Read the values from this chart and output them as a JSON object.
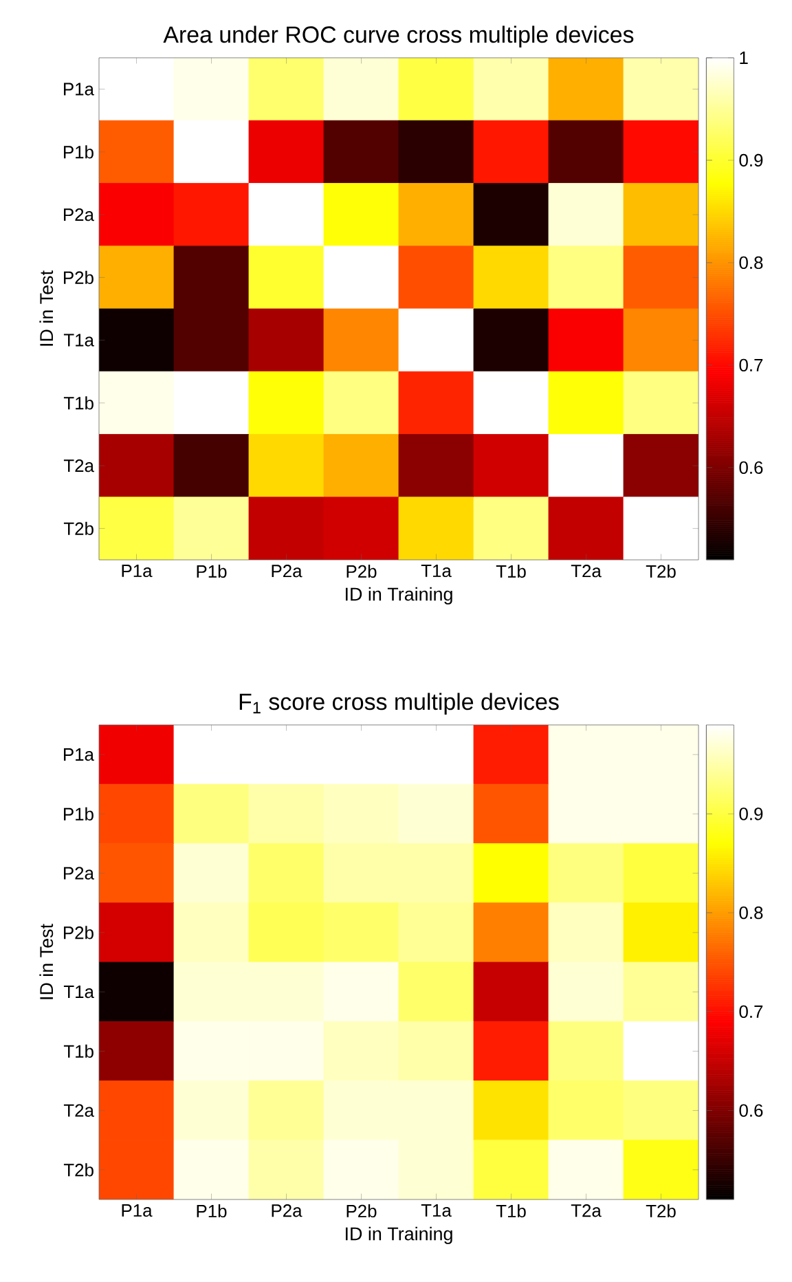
{
  "chart_data": [
    {
      "type": "heatmap",
      "title": "Area under ROC curve cross multiple devices",
      "xlabel": "ID in Training",
      "ylabel": "ID in Test",
      "categories": [
        "P1a",
        "P1b",
        "P2a",
        "P2b",
        "T1a",
        "T1b",
        "T2a",
        "T2b"
      ],
      "y_categories": [
        "P1a",
        "P1b",
        "P2a",
        "P2b",
        "T1a",
        "T1b",
        "T2a",
        "T2b"
      ],
      "cells": [
        [
          1.0,
          0.99,
          0.93,
          0.98,
          0.91,
          0.96,
          0.82,
          0.96
        ],
        [
          0.76,
          1.0,
          0.68,
          0.57,
          0.54,
          0.71,
          0.57,
          0.7
        ],
        [
          0.69,
          0.71,
          1.0,
          0.88,
          0.82,
          0.53,
          0.98,
          0.83
        ],
        [
          0.82,
          0.57,
          0.9,
          1.0,
          0.75,
          0.85,
          0.94,
          0.76
        ],
        [
          0.52,
          0.57,
          0.63,
          0.79,
          1.0,
          0.53,
          0.69,
          0.79
        ],
        [
          0.99,
          1.0,
          0.88,
          0.94,
          0.72,
          1.0,
          0.88,
          0.94
        ],
        [
          0.63,
          0.56,
          0.85,
          0.82,
          0.61,
          0.66,
          1.0,
          0.61
        ],
        [
          0.91,
          0.95,
          0.65,
          0.66,
          0.85,
          0.94,
          0.65,
          1.0
        ]
      ],
      "clim": [
        0.51,
        1
      ],
      "cticks": [
        0.6,
        0.7,
        0.8,
        0.9,
        1
      ]
    },
    {
      "type": "heatmap",
      "title": "F$_{1}$ score cross multiple devices",
      "xlabel": "ID in Training",
      "ylabel": "ID in Test",
      "categories": [
        "P1a",
        "P1b",
        "P2a",
        "P2b",
        "T1a",
        "T1b",
        "T2a",
        "T2b"
      ],
      "y_categories": [
        "P1a",
        "P1b",
        "P2a",
        "P2b",
        "T1a",
        "T1b",
        "T2a",
        "T2b"
      ],
      "cells": [
        [
          0.68,
          0.99,
          0.99,
          0.99,
          0.99,
          0.71,
          0.98,
          0.98
        ],
        [
          0.74,
          0.93,
          0.95,
          0.96,
          0.97,
          0.75,
          0.98,
          0.98
        ],
        [
          0.75,
          0.97,
          0.92,
          0.95,
          0.95,
          0.87,
          0.93,
          0.9
        ],
        [
          0.66,
          0.96,
          0.91,
          0.92,
          0.94,
          0.78,
          0.96,
          0.86
        ],
        [
          0.52,
          0.97,
          0.97,
          0.98,
          0.92,
          0.65,
          0.97,
          0.94
        ],
        [
          0.61,
          0.98,
          0.98,
          0.96,
          0.95,
          0.71,
          0.93,
          0.99
        ],
        [
          0.74,
          0.97,
          0.94,
          0.97,
          0.97,
          0.85,
          0.92,
          0.93
        ],
        [
          0.74,
          0.98,
          0.95,
          0.98,
          0.97,
          0.9,
          0.98,
          0.88
        ]
      ],
      "clim": [
        0.51,
        0.99
      ],
      "cticks": [
        0.6,
        0.7,
        0.8,
        0.9
      ]
    }
  ]
}
